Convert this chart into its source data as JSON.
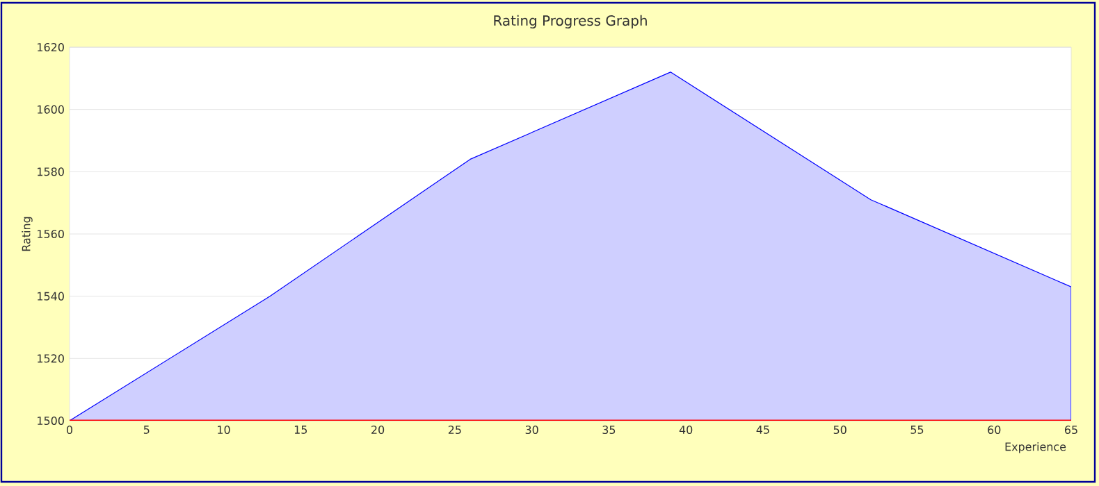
{
  "chart_data": {
    "type": "area",
    "title": "Rating Progress Graph",
    "xlabel": "Experience",
    "ylabel": "Rating",
    "x": [
      0,
      13,
      26,
      39,
      52,
      65
    ],
    "series": [
      {
        "color": "#cfcfff",
        "values": [
          1500,
          1540,
          1584,
          1612,
          1571,
          1543
        ]
      }
    ],
    "xlim": [
      0,
      65
    ],
    "xticks": [
      0,
      5,
      10,
      15,
      20,
      25,
      30,
      35,
      40,
      45,
      50,
      55,
      60,
      65
    ],
    "ylim": [
      1500,
      1620
    ],
    "yticks": [
      1500,
      1520,
      1540,
      1560,
      1580,
      1600,
      1620
    ],
    "grid": "y",
    "ref_lines": [
      {
        "axis": "y",
        "value": 1500,
        "color": "#ff0000"
      }
    ]
  }
}
